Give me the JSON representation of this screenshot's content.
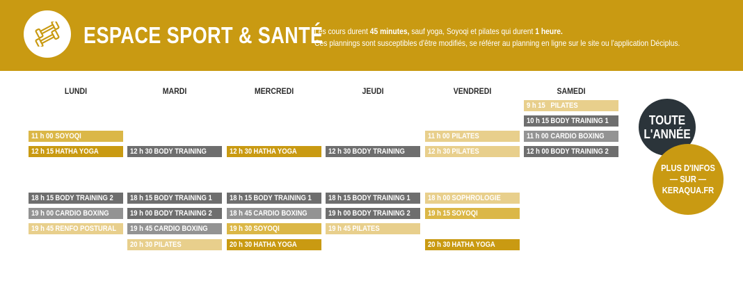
{
  "header": {
    "title": "ESPACE SPORT & SANTÉ",
    "icon": "dumbbell-icon",
    "info": {
      "l1_a": "Les cours durent ",
      "l1_b": "45 minutes,",
      "l1_c": " sauf yoga, Soyoqi et pilates qui durent ",
      "l1_d": "1 heure.",
      "l2": "Ces plannings sont susceptibles d'être modifiés, se référer au planning en ligne sur le site ou l'application Déciplus."
    }
  },
  "days": [
    "LUNDI",
    "MARDI",
    "MERCREDI",
    "JEUDI",
    "VENDREDI",
    "SAMEDI"
  ],
  "schedule": {
    "lundi": [
      {
        "time": "11 h 00",
        "course": "SOYOQI"
      },
      {
        "time": "12 h 15",
        "course": "HATHA YOGA"
      },
      {
        "time": "18 h 15",
        "course": "BODY TRAINING 2"
      },
      {
        "time": "19 h 00",
        "course": "CARDIO BOXING"
      },
      {
        "time": "19 h 45",
        "course": "RENFO POSTURAL"
      }
    ],
    "mardi": [
      {
        "time": "12 h 30",
        "course": "BODY TRAINING"
      },
      {
        "time": "18 h 15",
        "course": "BODY TRAINING 1"
      },
      {
        "time": "19 h 00",
        "course": "BODY TRAINING 2"
      },
      {
        "time": "19 h 45",
        "course": "CARDIO BOXING"
      },
      {
        "time": "20 h 30",
        "course": "PILATES"
      }
    ],
    "mercredi": [
      {
        "time": "12 h 30",
        "course": "HATHA YOGA"
      },
      {
        "time": "18 h 15",
        "course": "BODY TRAINING 1"
      },
      {
        "time": "18 h 45",
        "course": "CARDIO BOXING"
      },
      {
        "time": "19 h 30",
        "course": "SOYOQI"
      },
      {
        "time": "20 h 30",
        "course": "HATHA YOGA"
      }
    ],
    "jeudi": [
      {
        "time": "12 h 30",
        "course": "BODY TRAINING"
      },
      {
        "time": "18 h 15",
        "course": "BODY TRAINING 1"
      },
      {
        "time": "19 h 00",
        "course": "BODY TRAINING 2"
      },
      {
        "time": "19 h 45",
        "course": "PILATES"
      }
    ],
    "vendredi": [
      {
        "time": "11 h 00",
        "course": "PILATES"
      },
      {
        "time": "12 h 30",
        "course": "PILATES"
      },
      {
        "time": "18 h 00",
        "course": "SOPHROLOGIE"
      },
      {
        "time": "19 h 15",
        "course": "SOYOQI"
      },
      {
        "time": "20 h 30",
        "course": "HATHA YOGA"
      }
    ],
    "samedi": [
      {
        "time": "9 h 15",
        "course": "PILATES"
      },
      {
        "time": "10 h 15",
        "course": "BODY TRAINING 1"
      },
      {
        "time": "11 h 00",
        "course": "CARDIO BOXING"
      },
      {
        "time": "12 h 00",
        "course": "BODY TRAINING 2"
      }
    ]
  },
  "badges": {
    "annee_l1": "TOUTE",
    "annee_l2": "L'ANNÉE",
    "infos_l1": "PLUS D'INFOS",
    "infos_l2": "— SUR —",
    "infos_l3": "KERAQUA.FR"
  },
  "colors": {
    "brand_gold": "#c99a12",
    "mustard": "#dbb747",
    "light_gold": "#e8cf8c",
    "dark_gray": "#6e6e6e",
    "mid_gray": "#939393",
    "badge_dark": "#2b343a"
  }
}
